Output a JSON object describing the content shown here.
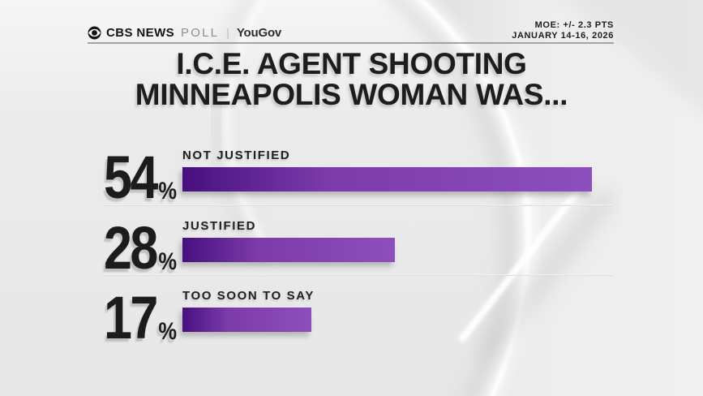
{
  "header": {
    "brand": {
      "eye_icon": "cbs-eye-icon",
      "network": "CBS NEWS",
      "product": "POLL",
      "divider": "|",
      "partner": "YouGov"
    },
    "moe": "MOE: +/- 2.3 PTS",
    "date_range": "JANUARY 14-16, 2026"
  },
  "title": {
    "line1": "I.C.E. AGENT SHOOTING",
    "line2": "MINNEAPOLIS WOMAN WAS..."
  },
  "chart_data": {
    "type": "bar",
    "orientation": "horizontal",
    "title": "I.C.E. AGENT SHOOTING MINNEAPOLIS WOMAN WAS...",
    "categories": [
      "NOT JUSTIFIED",
      "JUSTIFIED",
      "TOO SOON TO SAY"
    ],
    "values": [
      54,
      28,
      17
    ],
    "unit": "%",
    "xlim": [
      0,
      100
    ],
    "grid": false,
    "legend": false,
    "bar_gradient": {
      "start": "#47107f",
      "mid": "#7b3ba9",
      "end": "#8d4fbc"
    }
  },
  "colors": {
    "text": "#1d1d1b",
    "muted_text": "#8f8f8f",
    "rule": "#969696",
    "background": "#ebebeb"
  }
}
